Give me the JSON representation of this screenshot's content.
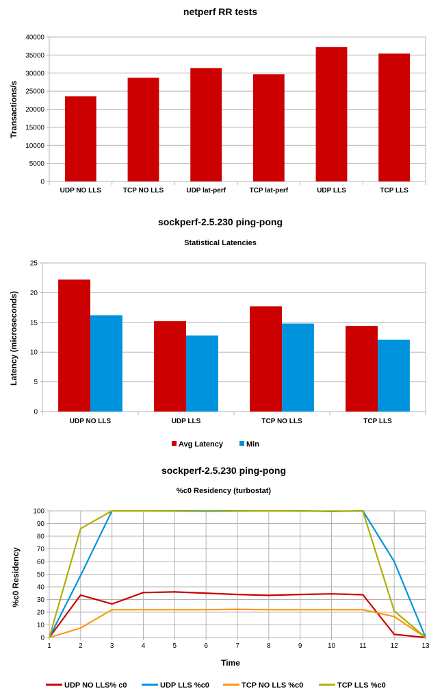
{
  "chart_data": [
    {
      "type": "bar",
      "title": "netperf RR tests",
      "xlabel": "",
      "ylabel": "Transactions/s",
      "ylim": [
        0,
        40000
      ],
      "ytick_step": 5000,
      "grid": true,
      "categories": [
        "UDP NO LLS",
        "TCP NO LLS",
        "UDP lat-perf",
        "TCP lat-perf",
        "UDP LLS",
        "TCP LLS"
      ],
      "series": [
        {
          "name": "Transactions/s",
          "color": "#cc0000",
          "values": [
            23600,
            28700,
            31400,
            29700,
            37200,
            35400
          ]
        }
      ]
    },
    {
      "type": "bar",
      "title": "sockperf-2.5.230 ping-pong",
      "subtitle": "Statistical Latencies",
      "xlabel": "",
      "ylabel": "Latency (microseconds)",
      "ylim": [
        0,
        25
      ],
      "ytick_step": 5,
      "grid": true,
      "legend": "bottom",
      "categories": [
        "UDP NO LLS",
        "UDP LLS",
        "TCP NO LLS",
        "TCP LLS"
      ],
      "series": [
        {
          "name": "Avg Latency",
          "color": "#cc0000",
          "values": [
            22.2,
            15.2,
            17.7,
            14.4
          ]
        },
        {
          "name": "Min",
          "color": "#0093dd",
          "values": [
            16.2,
            12.8,
            14.8,
            12.1
          ]
        }
      ]
    },
    {
      "type": "line",
      "title": "sockperf-2.5.230 ping-pong",
      "subtitle": "%c0 Residency (turbostat)",
      "xlabel": "Time",
      "ylabel": "%c0 Residency",
      "ylim": [
        0,
        100
      ],
      "ytick_step": 10,
      "grid": true,
      "legend": "bottom",
      "x": [
        1,
        2,
        3,
        4,
        5,
        6,
        7,
        8,
        9,
        10,
        11,
        12,
        13
      ],
      "series": [
        {
          "name": "UDP NO LLS% c0",
          "color": "#cc0000",
          "values": [
            0,
            33.5,
            26.5,
            35.5,
            36,
            35,
            34,
            33.3,
            34,
            34.5,
            33.8,
            2.5,
            0
          ]
        },
        {
          "name": "UDP LLS %c0",
          "color": "#0093dd",
          "values": [
            0,
            49,
            100,
            100,
            100,
            99.8,
            100,
            100,
            100,
            99.5,
            100,
            60,
            0
          ]
        },
        {
          "name": "TCP NO LLS %c0",
          "color": "#ff950e",
          "values": [
            0,
            7.5,
            22,
            22,
            22,
            22,
            22.3,
            22,
            22,
            22,
            22,
            16.5,
            0
          ]
        },
        {
          "name": "TCP LLS %c0",
          "color": "#aeb000",
          "values": [
            0,
            86,
            100,
            100,
            99.8,
            99.5,
            99.8,
            100,
            99.8,
            99.8,
            99.8,
            21,
            0
          ]
        }
      ]
    }
  ]
}
